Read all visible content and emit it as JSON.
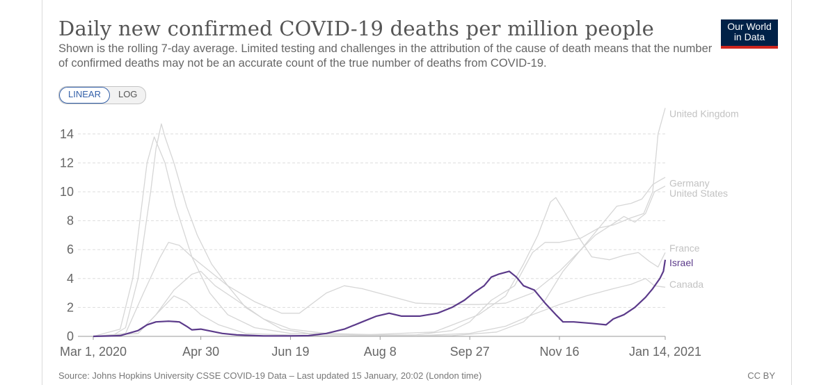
{
  "header": {
    "title": "Daily new confirmed COVID-19 deaths per million people",
    "subtitle": "Shown is the rolling 7-day average. Limited testing and challenges in the attribution of the cause of death means that the number of confirmed deaths may not be an accurate count of the true number of deaths from COVID-19.",
    "logo_line1": "Our World",
    "logo_line2": "in Data"
  },
  "scale_toggle": {
    "linear_label": "LINEAR",
    "log_label": "LOG",
    "selected": "linear"
  },
  "footer": {
    "source": "Source: Johns Hopkins University CSSE COVID-19 Data – Last updated 15 January, 20:02 (London time)",
    "license": "CC BY"
  },
  "colors": {
    "highlight": "#5b3a8a",
    "muted": "#d6d6d6",
    "muted_label": "#c2c2c2",
    "grid": "#dddddd"
  },
  "chart_data": {
    "type": "line",
    "x_unit": "days since first tick label",
    "x_ticks": [
      {
        "x": 0,
        "label": "Mar 1, 2020"
      },
      {
        "x": 60,
        "label": "Apr 30"
      },
      {
        "x": 110,
        "label": "Jun 19"
      },
      {
        "x": 160,
        "label": "Aug 8"
      },
      {
        "x": 210,
        "label": "Sep 27"
      },
      {
        "x": 260,
        "label": "Nov 16"
      },
      {
        "x": 319,
        "label": "Jan 14, 2021"
      }
    ],
    "y_ticks": [
      0,
      2,
      4,
      6,
      8,
      10,
      12,
      14
    ],
    "xlim": [
      0,
      319
    ],
    "ylim": [
      0,
      15
    ],
    "grid": true,
    "legend": "inline-right",
    "series": [
      {
        "name": "United Kingdom",
        "highlight": false,
        "points": [
          [
            0,
            0
          ],
          [
            10,
            0
          ],
          [
            18,
            0.6
          ],
          [
            25,
            4
          ],
          [
            32,
            10
          ],
          [
            35,
            13
          ],
          [
            38,
            14.7
          ],
          [
            40,
            13.8
          ],
          [
            45,
            12
          ],
          [
            52,
            9
          ],
          [
            58,
            7
          ],
          [
            66,
            5
          ],
          [
            75,
            3.5
          ],
          [
            85,
            2
          ],
          [
            95,
            1.2
          ],
          [
            105,
            0.5
          ],
          [
            120,
            0.2
          ],
          [
            150,
            0.1
          ],
          [
            180,
            0.1
          ],
          [
            200,
            0.4
          ],
          [
            210,
            1
          ],
          [
            222,
            2.5
          ],
          [
            235,
            3.5
          ],
          [
            245,
            5.8
          ],
          [
            252,
            6.5
          ],
          [
            260,
            6.5
          ],
          [
            272,
            6.8
          ],
          [
            282,
            7.5
          ],
          [
            290,
            7.7
          ],
          [
            300,
            8.2
          ],
          [
            307,
            8.5
          ],
          [
            312,
            10
          ],
          [
            315,
            14
          ],
          [
            319,
            15.8
          ]
        ]
      },
      {
        "name": "Germany",
        "highlight": false,
        "points": [
          [
            0,
            0
          ],
          [
            25,
            0.2
          ],
          [
            35,
            1.5
          ],
          [
            45,
            2.8
          ],
          [
            52,
            2.4
          ],
          [
            60,
            1.5
          ],
          [
            70,
            0.8
          ],
          [
            85,
            0.2
          ],
          [
            120,
            0.05
          ],
          [
            200,
            0.05
          ],
          [
            225,
            0.3
          ],
          [
            240,
            1
          ],
          [
            252,
            2.5
          ],
          [
            262,
            4.5
          ],
          [
            272,
            6
          ],
          [
            282,
            7.5
          ],
          [
            292,
            9
          ],
          [
            300,
            9.2
          ],
          [
            306,
            9.5
          ],
          [
            312,
            10.5
          ],
          [
            316,
            10.8
          ],
          [
            319,
            11
          ]
        ]
      },
      {
        "name": "United States",
        "highlight": false,
        "points": [
          [
            0,
            0
          ],
          [
            18,
            0.2
          ],
          [
            28,
            3
          ],
          [
            37,
            5.4
          ],
          [
            42,
            6.5
          ],
          [
            48,
            6.3
          ],
          [
            55,
            5.5
          ],
          [
            65,
            4.5
          ],
          [
            75,
            3.5
          ],
          [
            90,
            2.4
          ],
          [
            105,
            1.6
          ],
          [
            115,
            1.6
          ],
          [
            130,
            3
          ],
          [
            140,
            3.5
          ],
          [
            150,
            3.3
          ],
          [
            165,
            2.8
          ],
          [
            180,
            2.3
          ],
          [
            200,
            2.2
          ],
          [
            215,
            2.2
          ],
          [
            230,
            2.3
          ],
          [
            245,
            3
          ],
          [
            260,
            4.5
          ],
          [
            272,
            6
          ],
          [
            280,
            7
          ],
          [
            290,
            7.8
          ],
          [
            296,
            8.3
          ],
          [
            302,
            7.9
          ],
          [
            308,
            8.5
          ],
          [
            313,
            10
          ],
          [
            319,
            10.4
          ]
        ]
      },
      {
        "name": "France",
        "highlight": false,
        "points": [
          [
            0,
            0
          ],
          [
            15,
            0.5
          ],
          [
            22,
            4
          ],
          [
            30,
            12
          ],
          [
            34,
            13.8
          ],
          [
            40,
            12
          ],
          [
            46,
            9
          ],
          [
            55,
            5.5
          ],
          [
            65,
            3
          ],
          [
            75,
            1.5
          ],
          [
            90,
            0.6
          ],
          [
            110,
            0.2
          ],
          [
            150,
            0.1
          ],
          [
            190,
            0.3
          ],
          [
            215,
            1.5
          ],
          [
            230,
            2.8
          ],
          [
            240,
            5
          ],
          [
            248,
            7
          ],
          [
            255,
            9.3
          ],
          [
            258,
            9.6
          ],
          [
            262,
            8.8
          ],
          [
            270,
            7
          ],
          [
            278,
            5.5
          ],
          [
            288,
            5.3
          ],
          [
            296,
            5.6
          ],
          [
            304,
            5.8
          ],
          [
            310,
            5.2
          ],
          [
            315,
            4.8
          ],
          [
            319,
            5.8
          ]
        ]
      },
      {
        "name": "Canada",
        "highlight": false,
        "points": [
          [
            0,
            0
          ],
          [
            25,
            0.2
          ],
          [
            35,
            1.5
          ],
          [
            45,
            3.2
          ],
          [
            55,
            4.3
          ],
          [
            60,
            4.5
          ],
          [
            68,
            3.5
          ],
          [
            80,
            2.5
          ],
          [
            95,
            1.2
          ],
          [
            110,
            0.5
          ],
          [
            130,
            0.2
          ],
          [
            180,
            0.05
          ],
          [
            210,
            0.2
          ],
          [
            230,
            0.7
          ],
          [
            245,
            1.5
          ],
          [
            260,
            2.2
          ],
          [
            275,
            2.8
          ],
          [
            290,
            3.3
          ],
          [
            300,
            3.6
          ],
          [
            308,
            4
          ],
          [
            313,
            3.5
          ],
          [
            319,
            3.4
          ]
        ]
      },
      {
        "name": "Israel",
        "highlight": true,
        "points": [
          [
            0,
            0
          ],
          [
            15,
            0.05
          ],
          [
            25,
            0.4
          ],
          [
            30,
            0.8
          ],
          [
            35,
            1
          ],
          [
            42,
            1.05
          ],
          [
            48,
            1
          ],
          [
            52,
            0.7
          ],
          [
            55,
            0.45
          ],
          [
            60,
            0.5
          ],
          [
            66,
            0.35
          ],
          [
            72,
            0.2
          ],
          [
            80,
            0.1
          ],
          [
            95,
            0.03
          ],
          [
            110,
            0.03
          ],
          [
            120,
            0.05
          ],
          [
            130,
            0.2
          ],
          [
            140,
            0.5
          ],
          [
            150,
            1
          ],
          [
            158,
            1.4
          ],
          [
            165,
            1.6
          ],
          [
            172,
            1.4
          ],
          [
            182,
            1.4
          ],
          [
            192,
            1.6
          ],
          [
            200,
            2
          ],
          [
            207,
            2.5
          ],
          [
            212,
            3
          ],
          [
            218,
            3.5
          ],
          [
            222,
            4.1
          ],
          [
            226,
            4.3
          ],
          [
            232,
            4.5
          ],
          [
            236,
            4.1
          ],
          [
            240,
            3.5
          ],
          [
            246,
            3.2
          ],
          [
            252,
            2.3
          ],
          [
            258,
            1.5
          ],
          [
            262,
            1
          ],
          [
            268,
            1
          ],
          [
            278,
            0.9
          ],
          [
            286,
            0.8
          ],
          [
            290,
            1.2
          ],
          [
            296,
            1.5
          ],
          [
            302,
            2
          ],
          [
            308,
            2.7
          ],
          [
            312,
            3.3
          ],
          [
            316,
            4
          ],
          [
            318,
            4.5
          ],
          [
            319,
            5.3
          ]
        ]
      }
    ],
    "series_label_positions": {
      "United Kingdom": 15.4,
      "Germany": 10.6,
      "United States": 9.9,
      "France": 6.1,
      "Israel": 5.1,
      "Canada": 3.6
    }
  }
}
